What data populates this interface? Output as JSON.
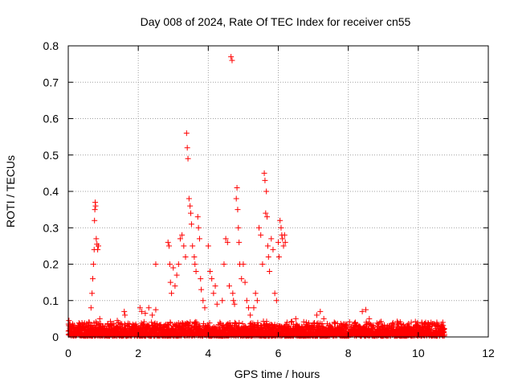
{
  "chart_data": {
    "type": "scatter",
    "title": "Day 008 of 2024, Rate Of TEC Index for receiver cn55",
    "xlabel": "GPS time / hours",
    "ylabel": "ROTI / TECUs",
    "xlim": [
      0,
      12
    ],
    "ylim": [
      0,
      0.8
    ],
    "xticks": [
      0,
      2,
      4,
      6,
      8,
      10,
      12
    ],
    "yticks": [
      0,
      0.1,
      0.2,
      0.3,
      0.4,
      0.5,
      0.6,
      0.7,
      0.8
    ],
    "grid": true,
    "marker": "+",
    "series": [
      {
        "name": "ROTI",
        "color": "#ff0000",
        "baseline": {
          "x_start": 0.0,
          "x_end": 10.75,
          "typical_max": 0.045
        },
        "points": [
          [
            0.02,
            0.045
          ],
          [
            0.05,
            0.035
          ],
          [
            0.1,
            0.03
          ],
          [
            0.15,
            0.012
          ],
          [
            0.25,
            0.02
          ],
          [
            0.35,
            0.03
          ],
          [
            0.45,
            0.02
          ],
          [
            0.6,
            0.04
          ],
          [
            0.65,
            0.08
          ],
          [
            0.68,
            0.12
          ],
          [
            0.7,
            0.16
          ],
          [
            0.72,
            0.2
          ],
          [
            0.74,
            0.24
          ],
          [
            0.75,
            0.32
          ],
          [
            0.76,
            0.35
          ],
          [
            0.77,
            0.37
          ],
          [
            0.78,
            0.36
          ],
          [
            0.8,
            0.27
          ],
          [
            0.82,
            0.255
          ],
          [
            0.84,
            0.24
          ],
          [
            0.86,
            0.25
          ],
          [
            0.9,
            0.05
          ],
          [
            1.2,
            0.03
          ],
          [
            1.4,
            0.045
          ],
          [
            1.6,
            0.07
          ],
          [
            1.62,
            0.06
          ],
          [
            1.8,
            0.02
          ],
          [
            2.05,
            0.08
          ],
          [
            2.1,
            0.07
          ],
          [
            2.2,
            0.065
          ],
          [
            2.3,
            0.08
          ],
          [
            2.4,
            0.06
          ],
          [
            2.5,
            0.075
          ],
          [
            2.5,
            0.2
          ],
          [
            2.85,
            0.26
          ],
          [
            2.88,
            0.25
          ],
          [
            2.9,
            0.2
          ],
          [
            2.92,
            0.15
          ],
          [
            2.95,
            0.12
          ],
          [
            3.0,
            0.19
          ],
          [
            3.05,
            0.14
          ],
          [
            3.1,
            0.17
          ],
          [
            3.15,
            0.2
          ],
          [
            3.2,
            0.27
          ],
          [
            3.25,
            0.28
          ],
          [
            3.3,
            0.25
          ],
          [
            3.35,
            0.22
          ],
          [
            3.38,
            0.56
          ],
          [
            3.4,
            0.52
          ],
          [
            3.42,
            0.49
          ],
          [
            3.45,
            0.38
          ],
          [
            3.48,
            0.36
          ],
          [
            3.5,
            0.34
          ],
          [
            3.52,
            0.31
          ],
          [
            3.55,
            0.25
          ],
          [
            3.6,
            0.22
          ],
          [
            3.62,
            0.2
          ],
          [
            3.65,
            0.18
          ],
          [
            3.7,
            0.33
          ],
          [
            3.72,
            0.3
          ],
          [
            3.75,
            0.27
          ],
          [
            3.78,
            0.16
          ],
          [
            3.8,
            0.13
          ],
          [
            3.85,
            0.1
          ],
          [
            3.9,
            0.08
          ],
          [
            4.0,
            0.25
          ],
          [
            4.05,
            0.18
          ],
          [
            4.1,
            0.16
          ],
          [
            4.15,
            0.12
          ],
          [
            4.2,
            0.14
          ],
          [
            4.25,
            0.09
          ],
          [
            4.4,
            0.1
          ],
          [
            4.45,
            0.2
          ],
          [
            4.5,
            0.27
          ],
          [
            4.55,
            0.26
          ],
          [
            4.6,
            0.14
          ],
          [
            4.65,
            0.77
          ],
          [
            4.68,
            0.76
          ],
          [
            4.7,
            0.12
          ],
          [
            4.72,
            0.1
          ],
          [
            4.75,
            0.09
          ],
          [
            4.8,
            0.38
          ],
          [
            4.82,
            0.41
          ],
          [
            4.84,
            0.35
          ],
          [
            4.86,
            0.3
          ],
          [
            4.88,
            0.26
          ],
          [
            4.9,
            0.2
          ],
          [
            4.95,
            0.16
          ],
          [
            5.0,
            0.2
          ],
          [
            5.05,
            0.15
          ],
          [
            5.1,
            0.1
          ],
          [
            5.15,
            0.08
          ],
          [
            5.2,
            0.06
          ],
          [
            5.3,
            0.08
          ],
          [
            5.35,
            0.12
          ],
          [
            5.4,
            0.1
          ],
          [
            5.45,
            0.3
          ],
          [
            5.5,
            0.28
          ],
          [
            5.55,
            0.2
          ],
          [
            5.6,
            0.45
          ],
          [
            5.62,
            0.43
          ],
          [
            5.64,
            0.34
          ],
          [
            5.66,
            0.4
          ],
          [
            5.68,
            0.33
          ],
          [
            5.7,
            0.25
          ],
          [
            5.72,
            0.22
          ],
          [
            5.75,
            0.18
          ],
          [
            5.8,
            0.27
          ],
          [
            5.85,
            0.24
          ],
          [
            5.9,
            0.12
          ],
          [
            5.95,
            0.1
          ],
          [
            6.0,
            0.26
          ],
          [
            6.02,
            0.22
          ],
          [
            6.05,
            0.32
          ],
          [
            6.08,
            0.3
          ],
          [
            6.1,
            0.28
          ],
          [
            6.12,
            0.27
          ],
          [
            6.15,
            0.25
          ],
          [
            6.18,
            0.28
          ],
          [
            6.2,
            0.26
          ],
          [
            6.25,
            0.04
          ],
          [
            6.5,
            0.05
          ],
          [
            6.8,
            0.04
          ],
          [
            7.1,
            0.06
          ],
          [
            7.2,
            0.07
          ],
          [
            7.3,
            0.05
          ],
          [
            7.6,
            0.04
          ],
          [
            7.9,
            0.035
          ],
          [
            8.2,
            0.04
          ],
          [
            8.4,
            0.07
          ],
          [
            8.5,
            0.075
          ],
          [
            8.6,
            0.05
          ],
          [
            8.9,
            0.04
          ],
          [
            9.2,
            0.03
          ],
          [
            9.5,
            0.035
          ],
          [
            9.8,
            0.04
          ],
          [
            10.1,
            0.04
          ],
          [
            10.2,
            0.035
          ],
          [
            10.5,
            0.03
          ],
          [
            10.7,
            0.04
          ]
        ]
      }
    ]
  }
}
